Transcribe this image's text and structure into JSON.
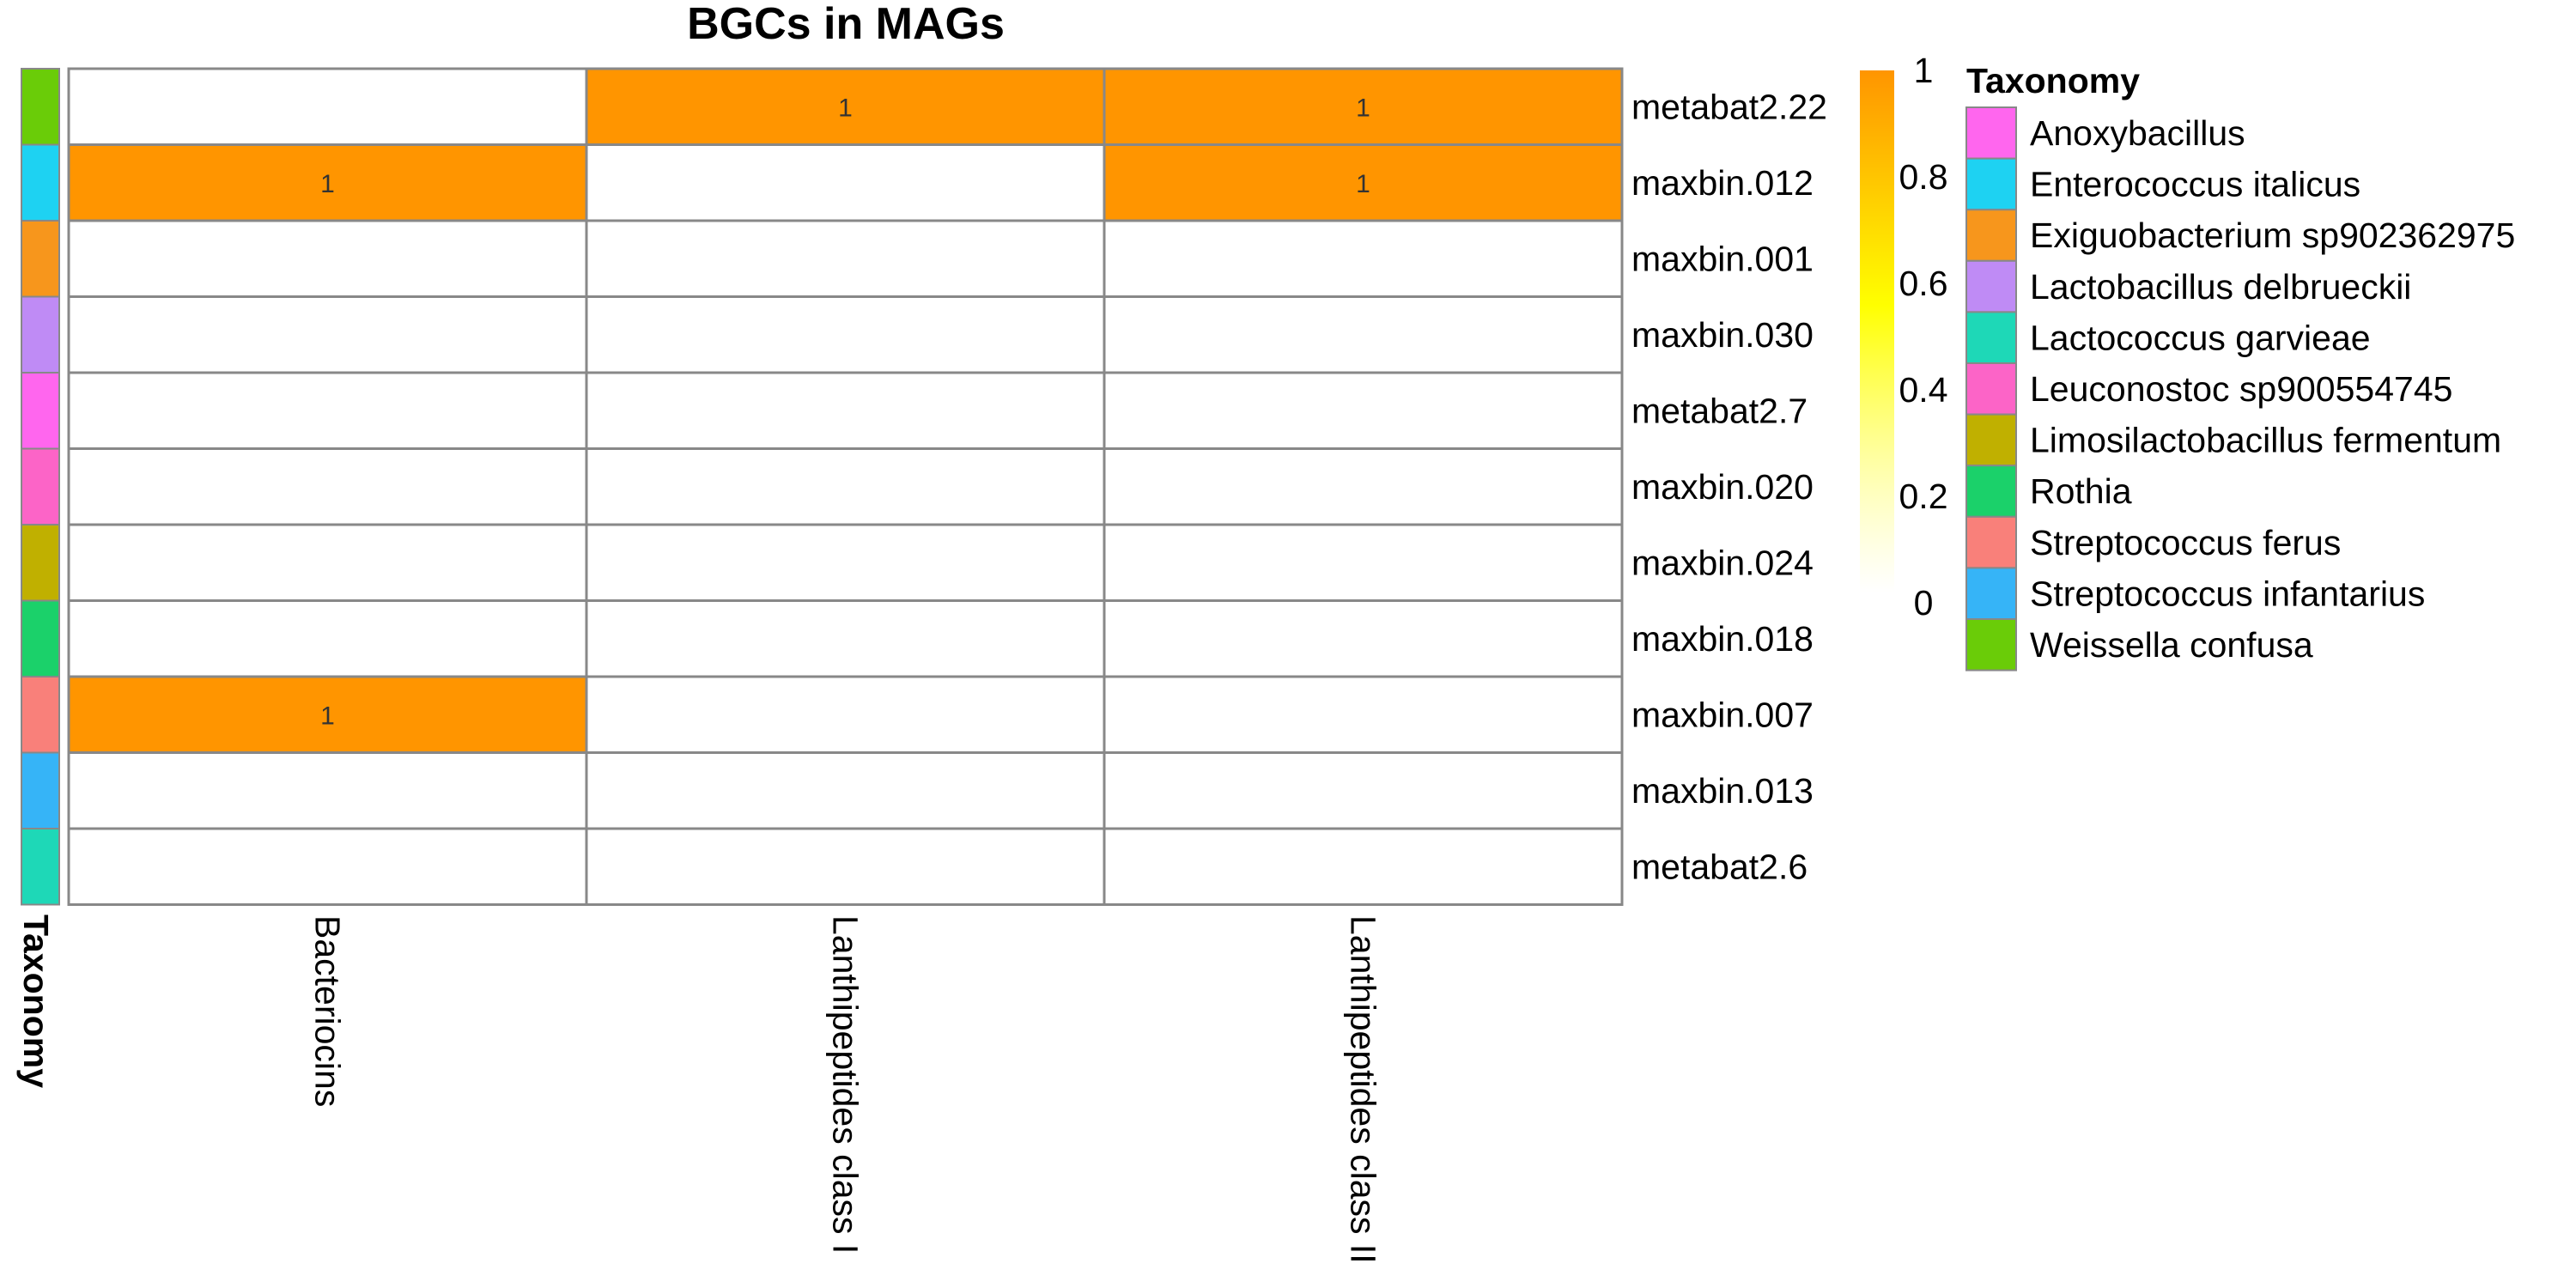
{
  "chart_data": {
    "type": "heatmap",
    "title": "BGCs in MAGs",
    "columns": [
      "Bacteriocins",
      "Lanthipeptides class I",
      "Lanthipeptides class II"
    ],
    "rows": [
      "metabat2.22",
      "maxbin.012",
      "maxbin.001",
      "maxbin.030",
      "metabat2.7",
      "maxbin.020",
      "maxbin.024",
      "maxbin.018",
      "maxbin.007",
      "maxbin.013",
      "metabat2.6"
    ],
    "values": [
      [
        0,
        1,
        1
      ],
      [
        1,
        0,
        1
      ],
      [
        0,
        0,
        0
      ],
      [
        0,
        0,
        0
      ],
      [
        0,
        0,
        0
      ],
      [
        0,
        0,
        0
      ],
      [
        0,
        0,
        0
      ],
      [
        0,
        0,
        0
      ],
      [
        1,
        0,
        0
      ],
      [
        0,
        0,
        0
      ],
      [
        0,
        0,
        0
      ]
    ],
    "row_taxonomy": [
      "Weissella confusa",
      "Enterococcus italicus",
      "Exiguobacterium sp902362975",
      "Lactobacillus delbrueckii",
      "Anoxybacillus",
      "Leuconostoc sp900554745",
      "Limosilactobacillus fermentum",
      "Rothia",
      "Streptococcus ferus",
      "Streptococcus infantarius",
      "Lactococcus garvieae"
    ],
    "annotation_label": "Taxonomy",
    "color_scale": {
      "min": 0,
      "max": 1,
      "ticks": [
        "1",
        "0.8",
        "0.6",
        "0.4",
        "0.2",
        "0"
      ],
      "colors": [
        "#FFFFFF",
        "#FFFF00",
        "#FF9500"
      ]
    },
    "taxonomy_legend": {
      "title": "Taxonomy",
      "items": [
        {
          "label": "Anoxybacillus",
          "color": "#FF66EE"
        },
        {
          "label": "Enterococcus italicus",
          "color": "#1ED2F2"
        },
        {
          "label": "Exiguobacterium sp902362975",
          "color": "#F7961C"
        },
        {
          "label": "Lactobacillus delbrueckii",
          "color": "#BF8BF5"
        },
        {
          "label": "Lactococcus garvieae",
          "color": "#1ED8B7"
        },
        {
          "label": "Leuconostoc sp900554745",
          "color": "#FC64C7"
        },
        {
          "label": "Limosilactobacillus fermentum",
          "color": "#C0B000"
        },
        {
          "label": "Rothia",
          "color": "#1BD16A"
        },
        {
          "label": "Streptococcus ferus",
          "color": "#F9807A"
        },
        {
          "label": "Streptococcus infantarius",
          "color": "#36B4F7"
        },
        {
          "label": "Weissella confusa",
          "color": "#6ACC08"
        }
      ]
    }
  }
}
